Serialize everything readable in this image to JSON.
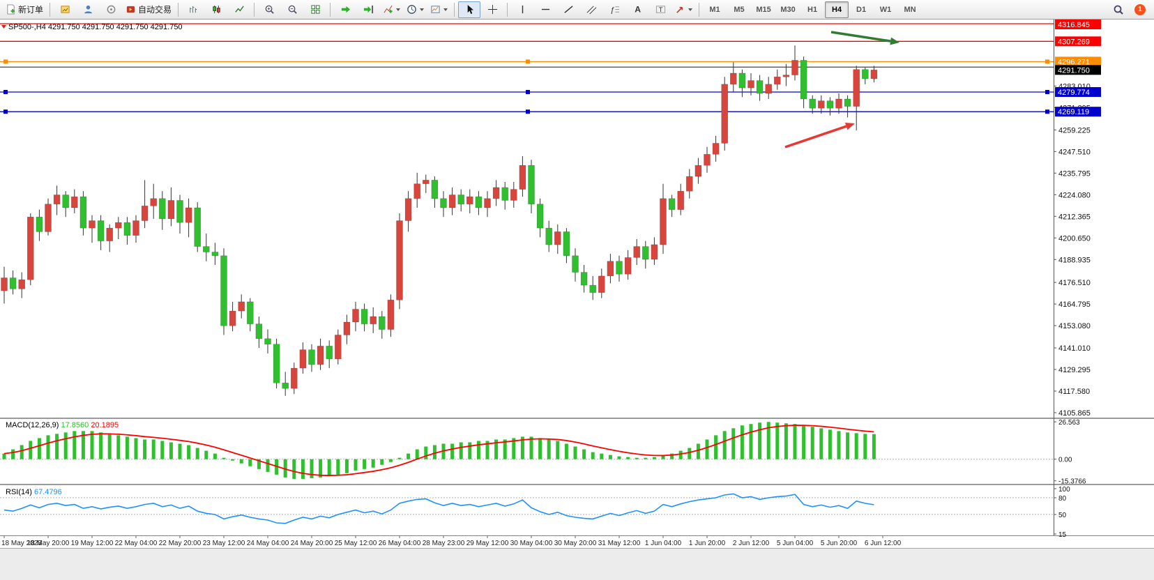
{
  "toolbar": {
    "new_order": "新订单",
    "autotrading": "自动交易",
    "timeframes": [
      "M1",
      "M5",
      "M15",
      "M30",
      "H1",
      "H4",
      "D1",
      "W1",
      "MN"
    ],
    "active_timeframe": "H4",
    "notification_count": "1"
  },
  "chart_data": {
    "type": "candlestick",
    "symbol": "SP500-",
    "period": "H4",
    "header": "SP500-,H4",
    "header_ohlc": "4291.750 4291.750 4291.750 4291.750",
    "up_color": "#d8453c",
    "down_color": "#2fbf2f",
    "wick_color": "#333333",
    "ylim": [
      4103.2,
      4319.1
    ],
    "price_axis_labels": [
      "4283.010",
      "4271.295",
      "4259.225",
      "4247.510",
      "4235.795",
      "4224.080",
      "4212.365",
      "4200.650",
      "4188.935",
      "4176.510",
      "4164.795",
      "4153.080",
      "4141.010",
      "4129.295",
      "4117.580",
      "4105.865"
    ],
    "levels": [
      {
        "name": "resistance-line-top",
        "price": 4316.845,
        "label": "4316.845",
        "color": "#ff0000",
        "handles": false
      },
      {
        "name": "resistance-line",
        "price": 4307.269,
        "label": "4307.269",
        "color": "#ff0000",
        "handles": false
      },
      {
        "name": "orange-level-line",
        "price": 4296.271,
        "label": "4296.271",
        "color": "#ff8c00",
        "handles": true
      },
      {
        "name": "dark-level-line",
        "price": 4293.3,
        "label": "",
        "color": "#444444",
        "handles": false
      },
      {
        "name": "bid-price",
        "price": 4291.75,
        "label": "4291.750",
        "color": "#000000",
        "noline": true
      },
      {
        "name": "support-line-upper",
        "price": 4279.774,
        "label": "4279.774",
        "color": "#0000cd",
        "handles": true
      },
      {
        "name": "support-line-lower",
        "price": 4269.119,
        "label": "4269.119",
        "color": "#0000cd",
        "handles": true
      }
    ],
    "ohlc": [
      [
        4172,
        4185,
        4165,
        4179
      ],
      [
        4179,
        4183,
        4170,
        4173
      ],
      [
        4173,
        4182,
        4168,
        4178
      ],
      [
        4178,
        4214,
        4175,
        4212
      ],
      [
        4212,
        4216,
        4199,
        4204
      ],
      [
        4204,
        4222,
        4202,
        4219
      ],
      [
        4219,
        4229,
        4213,
        4224
      ],
      [
        4224,
        4226,
        4212,
        4217
      ],
      [
        4217,
        4227,
        4214,
        4223
      ],
      [
        4223,
        4226,
        4202,
        4206
      ],
      [
        4206,
        4213,
        4198,
        4210
      ],
      [
        4210,
        4213,
        4194,
        4199
      ],
      [
        4199,
        4208,
        4193,
        4206
      ],
      [
        4206,
        4212,
        4200,
        4209
      ],
      [
        4209,
        4212,
        4197,
        4202
      ],
      [
        4202,
        4213,
        4198,
        4210
      ],
      [
        4210,
        4232,
        4206,
        4218
      ],
      [
        4218,
        4230,
        4211,
        4222
      ],
      [
        4222,
        4226,
        4205,
        4211
      ],
      [
        4211,
        4228,
        4207,
        4221
      ],
      [
        4221,
        4224,
        4203,
        4209
      ],
      [
        4209,
        4222,
        4201,
        4217
      ],
      [
        4217,
        4220,
        4193,
        4196
      ],
      [
        4196,
        4203,
        4188,
        4193
      ],
      [
        4193,
        4198,
        4186,
        4191
      ],
      [
        4191,
        4195,
        4148,
        4153
      ],
      [
        4153,
        4166,
        4150,
        4161
      ],
      [
        4161,
        4170,
        4157,
        4166
      ],
      [
        4166,
        4168,
        4150,
        4154
      ],
      [
        4154,
        4158,
        4141,
        4146
      ],
      [
        4146,
        4151,
        4138,
        4143
      ],
      [
        4143,
        4146,
        4119,
        4122
      ],
      [
        4122,
        4128,
        4115,
        4119
      ],
      [
        4119,
        4133,
        4116,
        4130
      ],
      [
        4130,
        4144,
        4127,
        4140
      ],
      [
        4140,
        4143,
        4128,
        4132
      ],
      [
        4132,
        4146,
        4129,
        4142
      ],
      [
        4142,
        4145,
        4130,
        4135
      ],
      [
        4135,
        4151,
        4132,
        4148
      ],
      [
        4148,
        4159,
        4143,
        4155
      ],
      [
        4155,
        4166,
        4150,
        4162
      ],
      [
        4162,
        4165,
        4150,
        4154
      ],
      [
        4154,
        4163,
        4149,
        4158
      ],
      [
        4158,
        4161,
        4146,
        4151
      ],
      [
        4151,
        4170,
        4147,
        4167
      ],
      [
        4167,
        4214,
        4162,
        4210
      ],
      [
        4210,
        4226,
        4204,
        4222
      ],
      [
        4222,
        4236,
        4217,
        4230
      ],
      [
        4230,
        4235,
        4225,
        4232
      ],
      [
        4232,
        4234,
        4217,
        4222
      ],
      [
        4222,
        4226,
        4212,
        4217
      ],
      [
        4217,
        4228,
        4213,
        4224
      ],
      [
        4224,
        4227,
        4215,
        4219
      ],
      [
        4219,
        4227,
        4214,
        4223
      ],
      [
        4223,
        4226,
        4213,
        4217
      ],
      [
        4217,
        4226,
        4212,
        4222
      ],
      [
        4222,
        4232,
        4218,
        4228
      ],
      [
        4228,
        4231,
        4216,
        4221
      ],
      [
        4221,
        4231,
        4217,
        4227
      ],
      [
        4227,
        4245,
        4223,
        4240
      ],
      [
        4240,
        4243,
        4214,
        4219
      ],
      [
        4219,
        4222,
        4201,
        4206
      ],
      [
        4206,
        4210,
        4193,
        4197
      ],
      [
        4197,
        4208,
        4192,
        4204
      ],
      [
        4204,
        4206,
        4187,
        4191
      ],
      [
        4191,
        4195,
        4177,
        4182
      ],
      [
        4182,
        4186,
        4171,
        4175
      ],
      [
        4175,
        4180,
        4167,
        4171
      ],
      [
        4171,
        4184,
        4168,
        4180
      ],
      [
        4180,
        4192,
        4176,
        4188
      ],
      [
        4188,
        4191,
        4177,
        4181
      ],
      [
        4181,
        4194,
        4178,
        4190
      ],
      [
        4190,
        4200,
        4186,
        4196
      ],
      [
        4196,
        4199,
        4184,
        4189
      ],
      [
        4189,
        4201,
        4186,
        4197
      ],
      [
        4197,
        4230,
        4192,
        4222
      ],
      [
        4222,
        4224,
        4212,
        4216
      ],
      [
        4216,
        4230,
        4213,
        4226
      ],
      [
        4226,
        4238,
        4222,
        4234
      ],
      [
        4234,
        4244,
        4230,
        4240
      ],
      [
        4240,
        4250,
        4236,
        4246
      ],
      [
        4246,
        4256,
        4242,
        4252
      ],
      [
        4252,
        4288,
        4248,
        4284
      ],
      [
        4284,
        4296,
        4280,
        4290
      ],
      [
        4290,
        4292,
        4277,
        4282
      ],
      [
        4282,
        4290,
        4278,
        4286
      ],
      [
        4286,
        4289,
        4275,
        4279
      ],
      [
        4279,
        4288,
        4276,
        4284
      ],
      [
        4284,
        4292,
        4281,
        4288
      ],
      [
        4288,
        4295,
        4283,
        4289
      ],
      [
        4289,
        4305,
        4286,
        4297
      ],
      [
        4297,
        4299,
        4271,
        4276
      ],
      [
        4276,
        4278,
        4268,
        4271
      ],
      [
        4271,
        4278,
        4268,
        4275
      ],
      [
        4275,
        4277,
        4267,
        4271
      ],
      [
        4271,
        4279,
        4268,
        4276
      ],
      [
        4276,
        4278,
        4266,
        4272
      ],
      [
        4272,
        4294,
        4259,
        4292
      ],
      [
        4292,
        4293,
        4284,
        4287
      ],
      [
        4287,
        4294,
        4285,
        4291.75
      ]
    ],
    "time_labels": [
      "18 May 2023",
      "18 May 20:00",
      "19 May 12:00",
      "22 May 04:00",
      "22 May 20:00",
      "23 May 12:00",
      "24 May 04:00",
      "24 May 20:00",
      "25 May 12:00",
      "26 May 04:00",
      "28 May 23:00",
      "29 May 12:00",
      "30 May 04:00",
      "30 May 20:00",
      "31 May 12:00",
      "1 Jun 04:00",
      "1 Jun 20:00",
      "2 Jun 12:00",
      "5 Jun 04:00",
      "5 Jun 20:00",
      "6 Jun 12:00"
    ],
    "arrows": [
      {
        "name": "green-arrow",
        "color": "#2e7d32",
        "from": [
          1192,
          46
        ],
        "to": [
          1290,
          61
        ]
      },
      {
        "name": "red-arrow",
        "color": "#e53935",
        "from": [
          1126,
          211
        ],
        "to": [
          1226,
          177
        ]
      }
    ],
    "macd": {
      "label": "MACD(12,26,9)",
      "main_value": "17.8560",
      "signal_value": "20.1895",
      "axis_labels": [
        "26.563",
        "0.00",
        "-15.3766"
      ],
      "axis_values": [
        26.563,
        0,
        -15.3766
      ],
      "histogram_color": "#2fbf2f",
      "signal_color": "#ff0000",
      "ylim": [
        -17.5,
        28.6
      ],
      "histogram": [
        4,
        7,
        10,
        13,
        15,
        17,
        18,
        19,
        20,
        20,
        20,
        19,
        18,
        17,
        16,
        15,
        14,
        14,
        13,
        12,
        11,
        10,
        8,
        6,
        4,
        1,
        -1,
        -3,
        -5,
        -7,
        -9,
        -11,
        -13,
        -14,
        -14,
        -13.5,
        -13,
        -12,
        -11,
        -10,
        -8,
        -7,
        -6,
        -4,
        -2,
        1,
        4,
        7,
        9,
        10,
        11,
        11,
        12,
        12,
        13,
        13,
        14,
        14,
        15,
        16,
        16,
        15,
        14,
        13,
        11,
        9,
        7,
        5,
        4,
        3,
        2,
        1.5,
        1,
        1,
        1.5,
        2.5,
        4,
        6,
        8,
        11,
        14,
        17,
        20,
        22,
        24,
        25,
        26,
        26.5,
        26,
        25.5,
        25,
        24,
        23,
        22,
        21,
        20,
        19,
        18.5,
        18,
        17.856
      ]
    },
    "rsi": {
      "label": "RSI(14)",
      "value": "67.4796",
      "color": "#1e90ff",
      "axis_labels": [
        "100",
        "80",
        "50",
        "15"
      ],
      "levels": [
        80,
        50
      ],
      "range": [
        15,
        100
      ],
      "values": [
        58,
        56,
        61,
        67,
        62,
        68,
        70,
        66,
        68,
        61,
        64,
        60,
        63,
        65,
        61,
        64,
        68,
        70,
        64,
        67,
        61,
        65,
        56,
        52,
        50,
        42,
        46,
        49,
        45,
        42,
        40,
        35,
        34,
        40,
        45,
        42,
        47,
        44,
        50,
        54,
        58,
        53,
        56,
        51,
        58,
        70,
        74,
        77,
        78,
        71,
        66,
        70,
        66,
        68,
        64,
        67,
        70,
        65,
        69,
        76,
        62,
        55,
        50,
        54,
        48,
        45,
        43,
        42,
        47,
        52,
        48,
        53,
        57,
        52,
        56,
        68,
        64,
        69,
        73,
        76,
        78,
        80,
        85,
        87,
        80,
        82,
        77,
        80,
        82,
        83,
        86,
        68,
        64,
        67,
        63,
        66,
        61,
        74,
        70,
        67.4796
      ]
    }
  }
}
